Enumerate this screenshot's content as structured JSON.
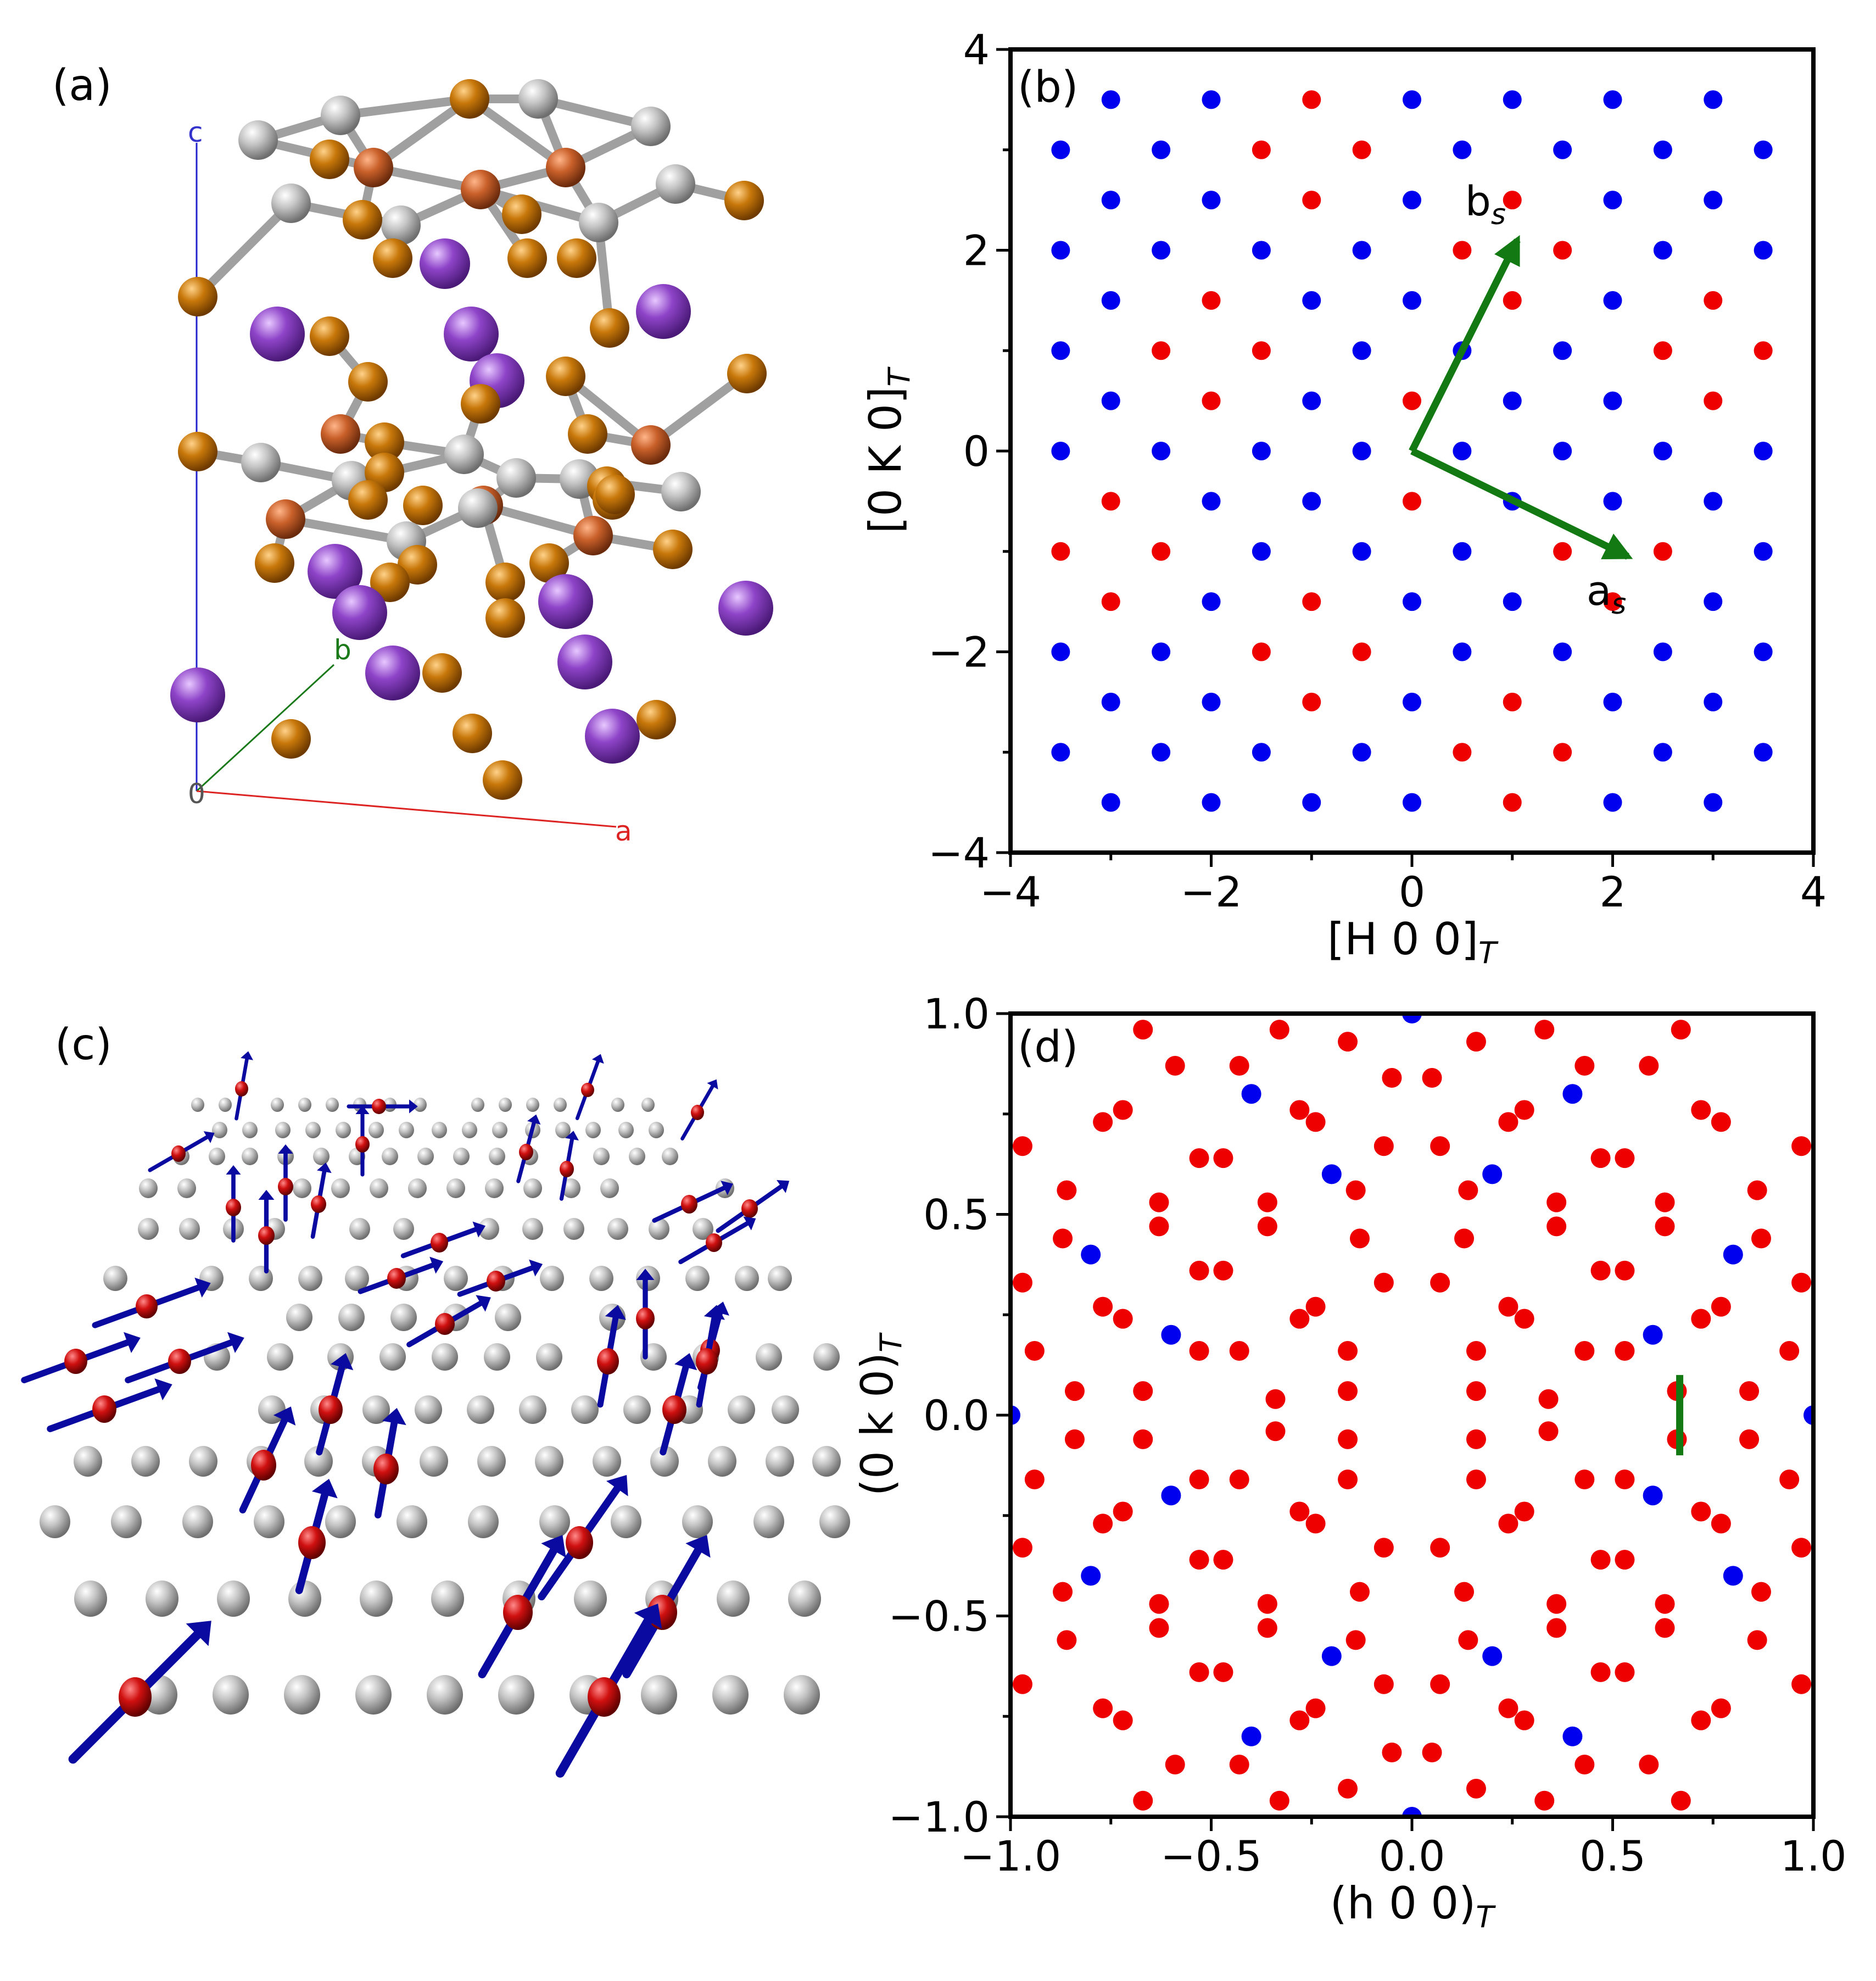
{
  "panels": {
    "a": {
      "label": "(a)",
      "axis_labels": {
        "c": "c",
        "b": "b",
        "origin": "0",
        "a": "a"
      }
    },
    "b": {
      "label": "(b)"
    },
    "c": {
      "label": "(c)"
    },
    "d": {
      "label": "(d)"
    }
  },
  "colors": {
    "blue": "#0000ee",
    "red": "#ee0000",
    "green": "#137a13",
    "purple": "#8e44c8",
    "orange": "#c8780a",
    "copper": "#c9602a",
    "gray": "#b8b8b8",
    "spin_red": "#d01010",
    "spin_arrow": "#0a0aa0"
  },
  "chart_data": [
    {
      "panel": "b",
      "type": "scatter",
      "xlabel": "[H 0 0]",
      "xlabel_sub": "T",
      "ylabel": "[0 K 0]",
      "ylabel_sub": "T",
      "xlim": [
        -4,
        4
      ],
      "ylim": [
        -4,
        4
      ],
      "xticks": [
        -4,
        -2,
        0,
        2,
        4
      ],
      "yticks": [
        -4,
        -2,
        0,
        2,
        4
      ],
      "xtick_labels": [
        "−4",
        "−2",
        "0",
        "2",
        "4"
      ],
      "ytick_labels": [
        "−4",
        "−2",
        "0",
        "2",
        "4"
      ],
      "lattice": {
        "rows": [
          {
            "y": 3.5,
            "x0": -3
          },
          {
            "y": 3,
            "x0": -3.5
          },
          {
            "y": 2.5,
            "x0": -3
          },
          {
            "y": 2,
            "x0": -3.5
          },
          {
            "y": 1.5,
            "x0": -3
          },
          {
            "y": 1,
            "x0": -3.5
          },
          {
            "y": 0.5,
            "x0": -3
          },
          {
            "y": 0,
            "x0": -3.5
          },
          {
            "y": -0.5,
            "x0": -3
          },
          {
            "y": -1,
            "x0": -3.5
          },
          {
            "y": -1.5,
            "x0": -3
          },
          {
            "y": -2,
            "x0": -3.5
          },
          {
            "y": -2.5,
            "x0": -3
          },
          {
            "y": -3,
            "x0": -3.5
          },
          {
            "y": -3.5,
            "x0": -3
          }
        ],
        "step": 1,
        "x_max": 3.5,
        "red_points": [
          [
            -1,
            3.5
          ],
          [
            -1.5,
            3
          ],
          [
            -0.5,
            3
          ],
          [
            -1,
            2.5
          ],
          [
            1,
            2.5
          ],
          [
            0.5,
            2
          ],
          [
            1.5,
            2
          ],
          [
            -2,
            1.5
          ],
          [
            1,
            1.5
          ],
          [
            3,
            1.5
          ],
          [
            -2.5,
            1
          ],
          [
            -1.5,
            1
          ],
          [
            2.5,
            1
          ],
          [
            3.5,
            1
          ],
          [
            -2,
            0.5
          ],
          [
            0,
            0.5
          ],
          [
            3,
            0.5
          ],
          [
            -3,
            -0.5
          ],
          [
            0,
            -0.5
          ],
          [
            -3.5,
            -1
          ],
          [
            -2.5,
            -1
          ],
          [
            1.5,
            -1
          ],
          [
            2.5,
            -1
          ],
          [
            -3,
            -1.5
          ],
          [
            -1,
            -1.5
          ],
          [
            2,
            -1.5
          ],
          [
            -1.5,
            -2
          ],
          [
            -0.5,
            -2
          ],
          [
            -1,
            -2.5
          ],
          [
            1,
            -2.5
          ],
          [
            0.5,
            -3
          ],
          [
            1.5,
            -3
          ],
          [
            1,
            -3.5
          ]
        ]
      },
      "vectors": [
        {
          "name": "b_s",
          "label": "b",
          "sub": "s",
          "x0": 0,
          "y0": 0,
          "x1": 1.05,
          "y1": 2.1
        },
        {
          "name": "a_s",
          "label": "a",
          "sub": "s",
          "x0": 0,
          "y0": 0,
          "x1": 2.15,
          "y1": -1.05
        }
      ]
    },
    {
      "panel": "d",
      "type": "scatter",
      "xlabel": "(h 0 0)",
      "xlabel_sub": "T",
      "ylabel": "(0 k 0)",
      "ylabel_sub": "T",
      "xlim": [
        -1,
        1
      ],
      "ylim": [
        -1,
        1
      ],
      "xticks": [
        -1,
        -0.5,
        0,
        0.5,
        1
      ],
      "yticks": [
        -1,
        -0.5,
        0,
        0.5,
        1
      ],
      "xtick_labels": [
        "−1.0",
        "−0.5",
        "0.0",
        "0.5",
        "1.0"
      ],
      "ytick_labels": [
        "−1.0",
        "−0.5",
        "0.0",
        "0.5",
        "1.0"
      ],
      "blue_points": [
        [
          0,
          1
        ],
        [
          0,
          -1
        ],
        [
          -1,
          0
        ],
        [
          1,
          0
        ],
        [
          -0.4,
          0.8
        ],
        [
          0.4,
          0.8
        ],
        [
          -0.2,
          0.6
        ],
        [
          0.2,
          0.6
        ],
        [
          -0.8,
          0.4
        ],
        [
          0.8,
          0.4
        ],
        [
          -0.6,
          0.2
        ],
        [
          0.6,
          0.2
        ],
        [
          -0.4,
          -0.8
        ],
        [
          0.4,
          -0.8
        ],
        [
          -0.2,
          -0.6
        ],
        [
          0.2,
          -0.6
        ],
        [
          -0.8,
          -0.4
        ],
        [
          0.8,
          -0.4
        ],
        [
          -0.6,
          -0.2
        ],
        [
          0.6,
          -0.2
        ]
      ],
      "red_points": [
        [
          -0.67,
          0.96
        ],
        [
          -0.33,
          0.96
        ],
        [
          -0.16,
          0.93
        ],
        [
          0.16,
          0.93
        ],
        [
          0.33,
          0.96
        ],
        [
          0.67,
          0.96
        ],
        [
          -0.59,
          0.87
        ],
        [
          -0.43,
          0.87
        ],
        [
          -0.05,
          0.84
        ],
        [
          0.05,
          0.84
        ],
        [
          0.43,
          0.87
        ],
        [
          0.59,
          0.87
        ],
        [
          -0.77,
          0.73
        ],
        [
          -0.72,
          0.76
        ],
        [
          -0.28,
          0.76
        ],
        [
          -0.24,
          0.73
        ],
        [
          0.24,
          0.73
        ],
        [
          0.28,
          0.76
        ],
        [
          0.72,
          0.76
        ],
        [
          0.77,
          0.73
        ],
        [
          -0.97,
          0.67
        ],
        [
          -0.53,
          0.64
        ],
        [
          -0.47,
          0.64
        ],
        [
          -0.07,
          0.67
        ],
        [
          0.07,
          0.67
        ],
        [
          0.47,
          0.64
        ],
        [
          0.53,
          0.64
        ],
        [
          0.97,
          0.67
        ],
        [
          -0.86,
          0.56
        ],
        [
          -0.63,
          0.53
        ],
        [
          -0.36,
          0.53
        ],
        [
          -0.14,
          0.56
        ],
        [
          0.14,
          0.56
        ],
        [
          0.36,
          0.53
        ],
        [
          0.63,
          0.53
        ],
        [
          0.86,
          0.56
        ],
        [
          -0.87,
          0.44
        ],
        [
          -0.63,
          0.47
        ],
        [
          -0.36,
          0.47
        ],
        [
          -0.13,
          0.44
        ],
        [
          0.13,
          0.44
        ],
        [
          0.36,
          0.47
        ],
        [
          0.63,
          0.47
        ],
        [
          0.87,
          0.44
        ],
        [
          -0.97,
          0.33
        ],
        [
          -0.53,
          0.36
        ],
        [
          -0.47,
          0.36
        ],
        [
          -0.07,
          0.33
        ],
        [
          0.07,
          0.33
        ],
        [
          0.47,
          0.36
        ],
        [
          0.53,
          0.36
        ],
        [
          0.97,
          0.33
        ],
        [
          -0.77,
          0.27
        ],
        [
          -0.72,
          0.24
        ],
        [
          -0.28,
          0.24
        ],
        [
          -0.24,
          0.27
        ],
        [
          0.24,
          0.27
        ],
        [
          0.28,
          0.24
        ],
        [
          0.72,
          0.24
        ],
        [
          0.77,
          0.27
        ],
        [
          -0.94,
          0.16
        ],
        [
          -0.53,
          0.16
        ],
        [
          -0.43,
          0.16
        ],
        [
          -0.16,
          0.16
        ],
        [
          0.16,
          0.16
        ],
        [
          0.43,
          0.16
        ],
        [
          0.53,
          0.16
        ],
        [
          0.94,
          0.16
        ],
        [
          -0.84,
          0.06
        ],
        [
          -0.67,
          0.06
        ],
        [
          -0.34,
          0.04
        ],
        [
          -0.16,
          0.06
        ],
        [
          0.16,
          0.06
        ],
        [
          0.34,
          0.04
        ],
        [
          0.66,
          0.06
        ],
        [
          0.84,
          0.06
        ],
        [
          -0.84,
          -0.06
        ],
        [
          -0.67,
          -0.06
        ],
        [
          -0.34,
          -0.04
        ],
        [
          -0.16,
          -0.06
        ],
        [
          0.16,
          -0.06
        ],
        [
          0.34,
          -0.04
        ],
        [
          0.66,
          -0.06
        ],
        [
          0.84,
          -0.06
        ],
        [
          -0.94,
          -0.16
        ],
        [
          -0.53,
          -0.16
        ],
        [
          -0.43,
          -0.16
        ],
        [
          -0.16,
          -0.16
        ],
        [
          0.16,
          -0.16
        ],
        [
          0.43,
          -0.16
        ],
        [
          0.53,
          -0.16
        ],
        [
          0.94,
          -0.16
        ],
        [
          -0.77,
          -0.27
        ],
        [
          -0.72,
          -0.24
        ],
        [
          -0.28,
          -0.24
        ],
        [
          -0.24,
          -0.27
        ],
        [
          0.24,
          -0.27
        ],
        [
          0.28,
          -0.24
        ],
        [
          0.72,
          -0.24
        ],
        [
          0.77,
          -0.27
        ],
        [
          -0.97,
          -0.33
        ],
        [
          -0.53,
          -0.36
        ],
        [
          -0.47,
          -0.36
        ],
        [
          -0.07,
          -0.33
        ],
        [
          0.07,
          -0.33
        ],
        [
          0.47,
          -0.36
        ],
        [
          0.53,
          -0.36
        ],
        [
          0.97,
          -0.33
        ],
        [
          -0.87,
          -0.44
        ],
        [
          -0.63,
          -0.47
        ],
        [
          -0.36,
          -0.47
        ],
        [
          -0.13,
          -0.44
        ],
        [
          0.13,
          -0.44
        ],
        [
          0.36,
          -0.47
        ],
        [
          0.63,
          -0.47
        ],
        [
          0.87,
          -0.44
        ],
        [
          -0.86,
          -0.56
        ],
        [
          -0.63,
          -0.53
        ],
        [
          -0.36,
          -0.53
        ],
        [
          -0.14,
          -0.56
        ],
        [
          0.14,
          -0.56
        ],
        [
          0.36,
          -0.53
        ],
        [
          0.63,
          -0.53
        ],
        [
          0.86,
          -0.56
        ],
        [
          -0.97,
          -0.67
        ],
        [
          -0.53,
          -0.64
        ],
        [
          -0.47,
          -0.64
        ],
        [
          -0.07,
          -0.67
        ],
        [
          0.07,
          -0.67
        ],
        [
          0.47,
          -0.64
        ],
        [
          0.53,
          -0.64
        ],
        [
          0.97,
          -0.67
        ],
        [
          -0.77,
          -0.73
        ],
        [
          -0.72,
          -0.76
        ],
        [
          -0.28,
          -0.76
        ],
        [
          -0.24,
          -0.73
        ],
        [
          0.24,
          -0.73
        ],
        [
          0.28,
          -0.76
        ],
        [
          0.72,
          -0.76
        ],
        [
          0.77,
          -0.73
        ],
        [
          -0.59,
          -0.87
        ],
        [
          -0.43,
          -0.87
        ],
        [
          -0.05,
          -0.84
        ],
        [
          0.05,
          -0.84
        ],
        [
          0.43,
          -0.87
        ],
        [
          0.59,
          -0.87
        ],
        [
          -0.67,
          -0.96
        ],
        [
          -0.33,
          -0.96
        ],
        [
          -0.16,
          -0.93
        ],
        [
          0.16,
          -0.93
        ],
        [
          0.33,
          -0.96
        ],
        [
          0.67,
          -0.96
        ]
      ],
      "marker_line": {
        "x": 0.667,
        "y0": -0.1,
        "y1": 0.1
      }
    }
  ]
}
